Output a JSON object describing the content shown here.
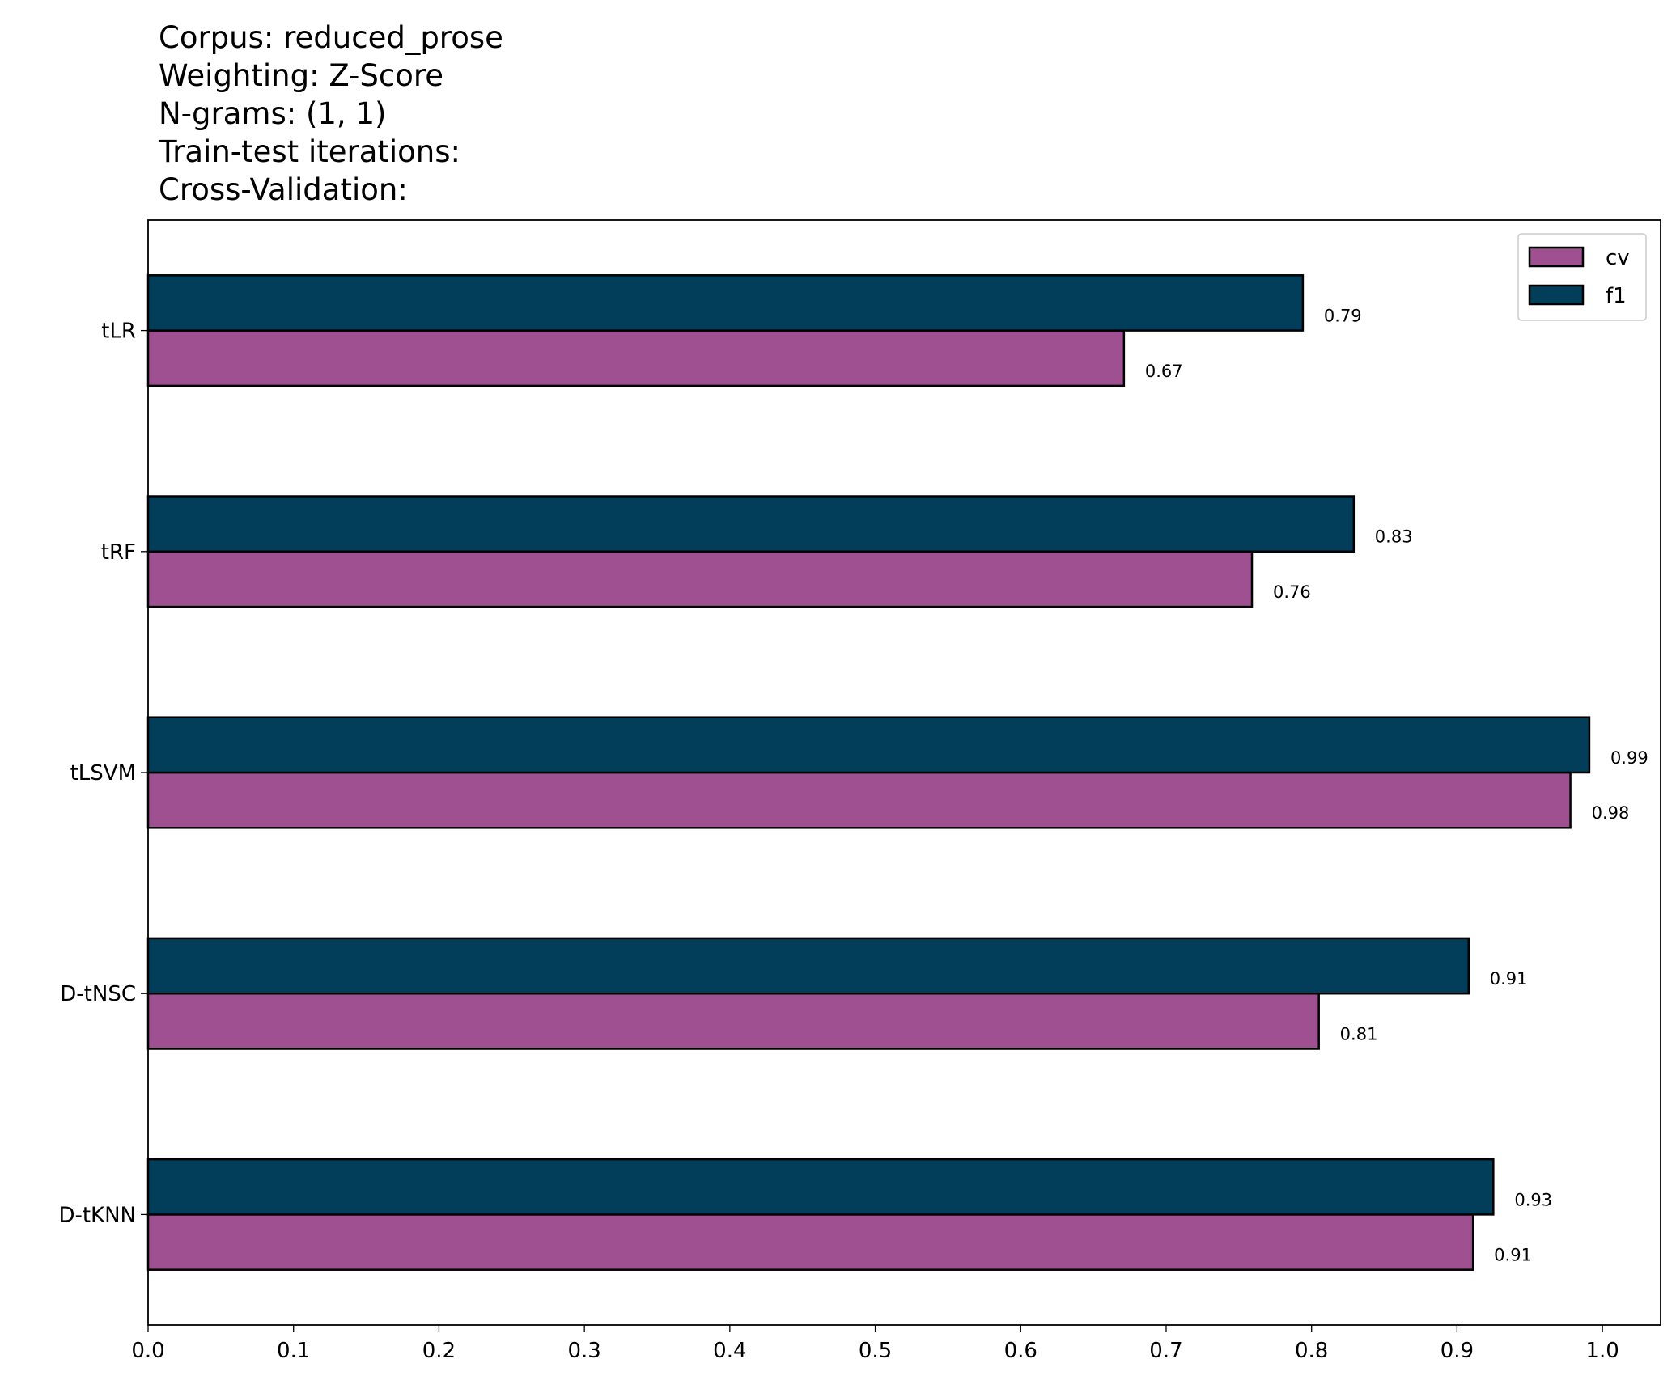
{
  "chart_data": {
    "type": "barh",
    "title": [
      "Corpus: reduced_prose",
      "Weighting: Z-Score",
      "N-grams: (1, 1)",
      "Train-test iterations:",
      "Cross-Validation:"
    ],
    "categories": [
      "tLR",
      "tRF",
      "tLSVM",
      "D-tNSC",
      "D-tKNN"
    ],
    "series": [
      {
        "name": "cv",
        "color": "#9e5090",
        "values": [
          0.671,
          0.759,
          0.978,
          0.805,
          0.911
        ],
        "value_labels": [
          "0.67",
          "0.76",
          "0.98",
          "0.81",
          "0.91"
        ]
      },
      {
        "name": "f1",
        "color": "#023e5a",
        "values": [
          0.794,
          0.829,
          0.991,
          0.908,
          0.925
        ],
        "value_labels": [
          "0.79",
          "0.83",
          "0.99",
          "0.91",
          "0.93"
        ]
      }
    ],
    "xlim": [
      0,
      1.04
    ],
    "xticks": [
      {
        "value": 0,
        "label": "0.0"
      },
      0.1,
      0.2,
      0.3,
      0.4,
      0.5,
      0.6,
      0.7,
      0.8,
      0.9,
      {
        "value": 1,
        "label": "1.0"
      }
    ],
    "legend": "upper right"
  }
}
